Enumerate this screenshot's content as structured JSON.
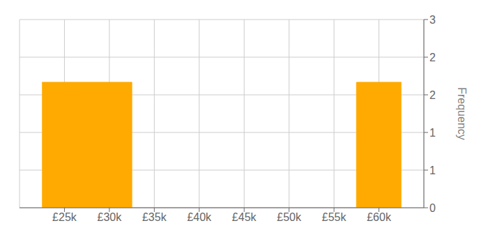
{
  "chart_data": {
    "type": "histogram",
    "ylabel": "Frequency",
    "bins": [
      22500,
      32500,
      57500,
      62500
    ],
    "values": [
      2,
      0,
      2
    ],
    "color": "#FFAA00",
    "xlim": [
      20000,
      65000
    ],
    "xticks": [
      {
        "value": 25000,
        "label": "£25k"
      },
      {
        "value": 30000,
        "label": "£30k"
      },
      {
        "value": 35000,
        "label": "£35k"
      },
      {
        "value": 40000,
        "label": "£40k"
      },
      {
        "value": 45000,
        "label": "£45k"
      },
      {
        "value": 50000,
        "label": "£50k"
      },
      {
        "value": 55000,
        "label": "£55k"
      },
      {
        "value": 60000,
        "label": "£60k"
      }
    ],
    "ylim": [
      0,
      3
    ],
    "yticks": [
      0,
      {
        "value": 0.6,
        "label": "1"
      },
      {
        "value": 1.2,
        "label": "1"
      },
      {
        "value": 1.8,
        "label": "2"
      },
      {
        "value": 2.4,
        "label": "2"
      },
      3
    ],
    "grid": true
  }
}
